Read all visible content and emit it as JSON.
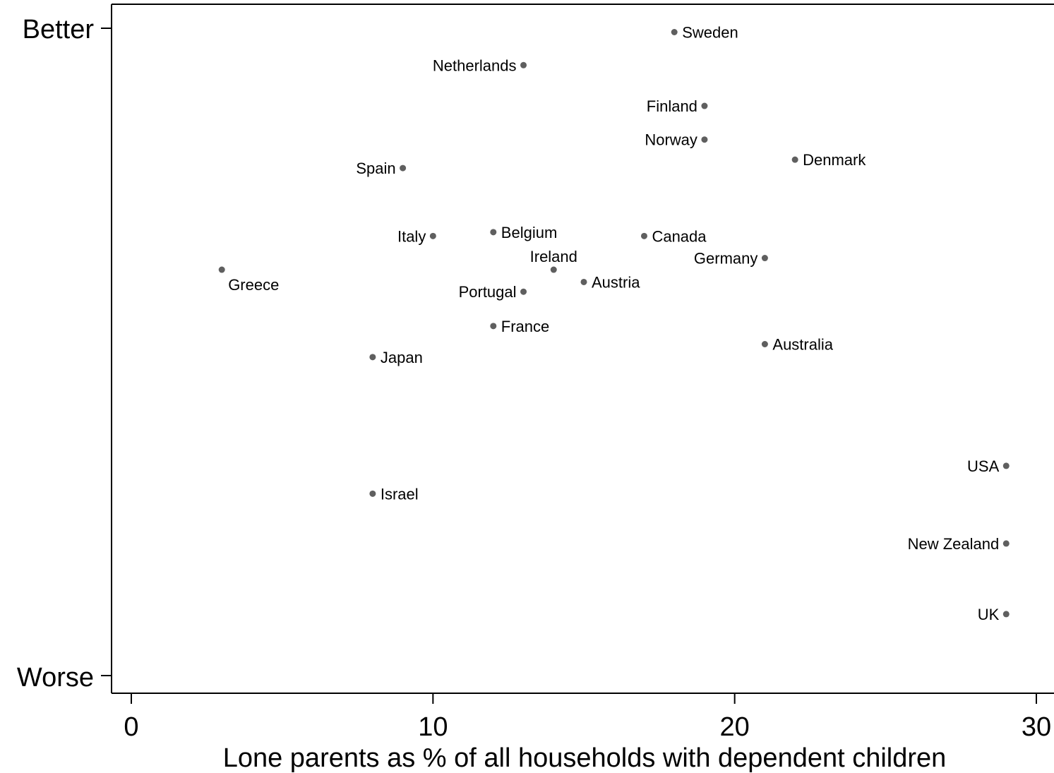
{
  "chart_data": {
    "type": "scatter",
    "title": "",
    "xlabel": "Lone parents as % of all households with dependent children",
    "ylabel": "",
    "xlim": [
      0,
      30
    ],
    "x_ticks": [
      0,
      10,
      20,
      30
    ],
    "x_tick_labels": [
      "0",
      "10",
      "20",
      "30"
    ],
    "y_tick_labels": {
      "top": "Better",
      "bottom": "Worse"
    },
    "ylim": [
      0,
      100
    ],
    "grid": false,
    "legend": "none",
    "point_color": "#5f5f5f",
    "points": [
      {
        "label": "Sweden",
        "x": 18,
        "y": 99.4,
        "label_side": "right"
      },
      {
        "label": "Netherlands",
        "x": 13,
        "y": 94.3,
        "label_side": "left"
      },
      {
        "label": "Finland",
        "x": 19,
        "y": 88.0,
        "label_side": "left"
      },
      {
        "label": "Norway",
        "x": 19,
        "y": 82.8,
        "label_side": "left"
      },
      {
        "label": "Denmark",
        "x": 22,
        "y": 79.7,
        "label_side": "right"
      },
      {
        "label": "Spain",
        "x": 9,
        "y": 78.4,
        "label_side": "left"
      },
      {
        "label": "Italy",
        "x": 10,
        "y": 67.9,
        "label_side": "left"
      },
      {
        "label": "Belgium",
        "x": 12,
        "y": 68.5,
        "label_side": "right"
      },
      {
        "label": "Canada",
        "x": 17,
        "y": 67.9,
        "label_side": "right"
      },
      {
        "label": "Germany",
        "x": 21,
        "y": 64.5,
        "label_side": "left"
      },
      {
        "label": "Ireland",
        "x": 14,
        "y": 62.7,
        "label_side": "above"
      },
      {
        "label": "Greece",
        "x": 3,
        "y": 62.7,
        "label_side": "below-right"
      },
      {
        "label": "Austria",
        "x": 15,
        "y": 60.8,
        "label_side": "right"
      },
      {
        "label": "Portugal",
        "x": 13,
        "y": 59.3,
        "label_side": "left"
      },
      {
        "label": "France",
        "x": 12,
        "y": 54.0,
        "label_side": "right"
      },
      {
        "label": "Australia",
        "x": 21,
        "y": 51.2,
        "label_side": "right"
      },
      {
        "label": "Japan",
        "x": 8,
        "y": 49.2,
        "label_side": "right"
      },
      {
        "label": "USA",
        "x": 29,
        "y": 32.4,
        "label_side": "left"
      },
      {
        "label": "Israel",
        "x": 8,
        "y": 28.1,
        "label_side": "right"
      },
      {
        "label": "New Zealand",
        "x": 29,
        "y": 20.4,
        "label_side": "left"
      },
      {
        "label": "UK",
        "x": 29,
        "y": 9.5,
        "label_side": "left"
      }
    ]
  }
}
